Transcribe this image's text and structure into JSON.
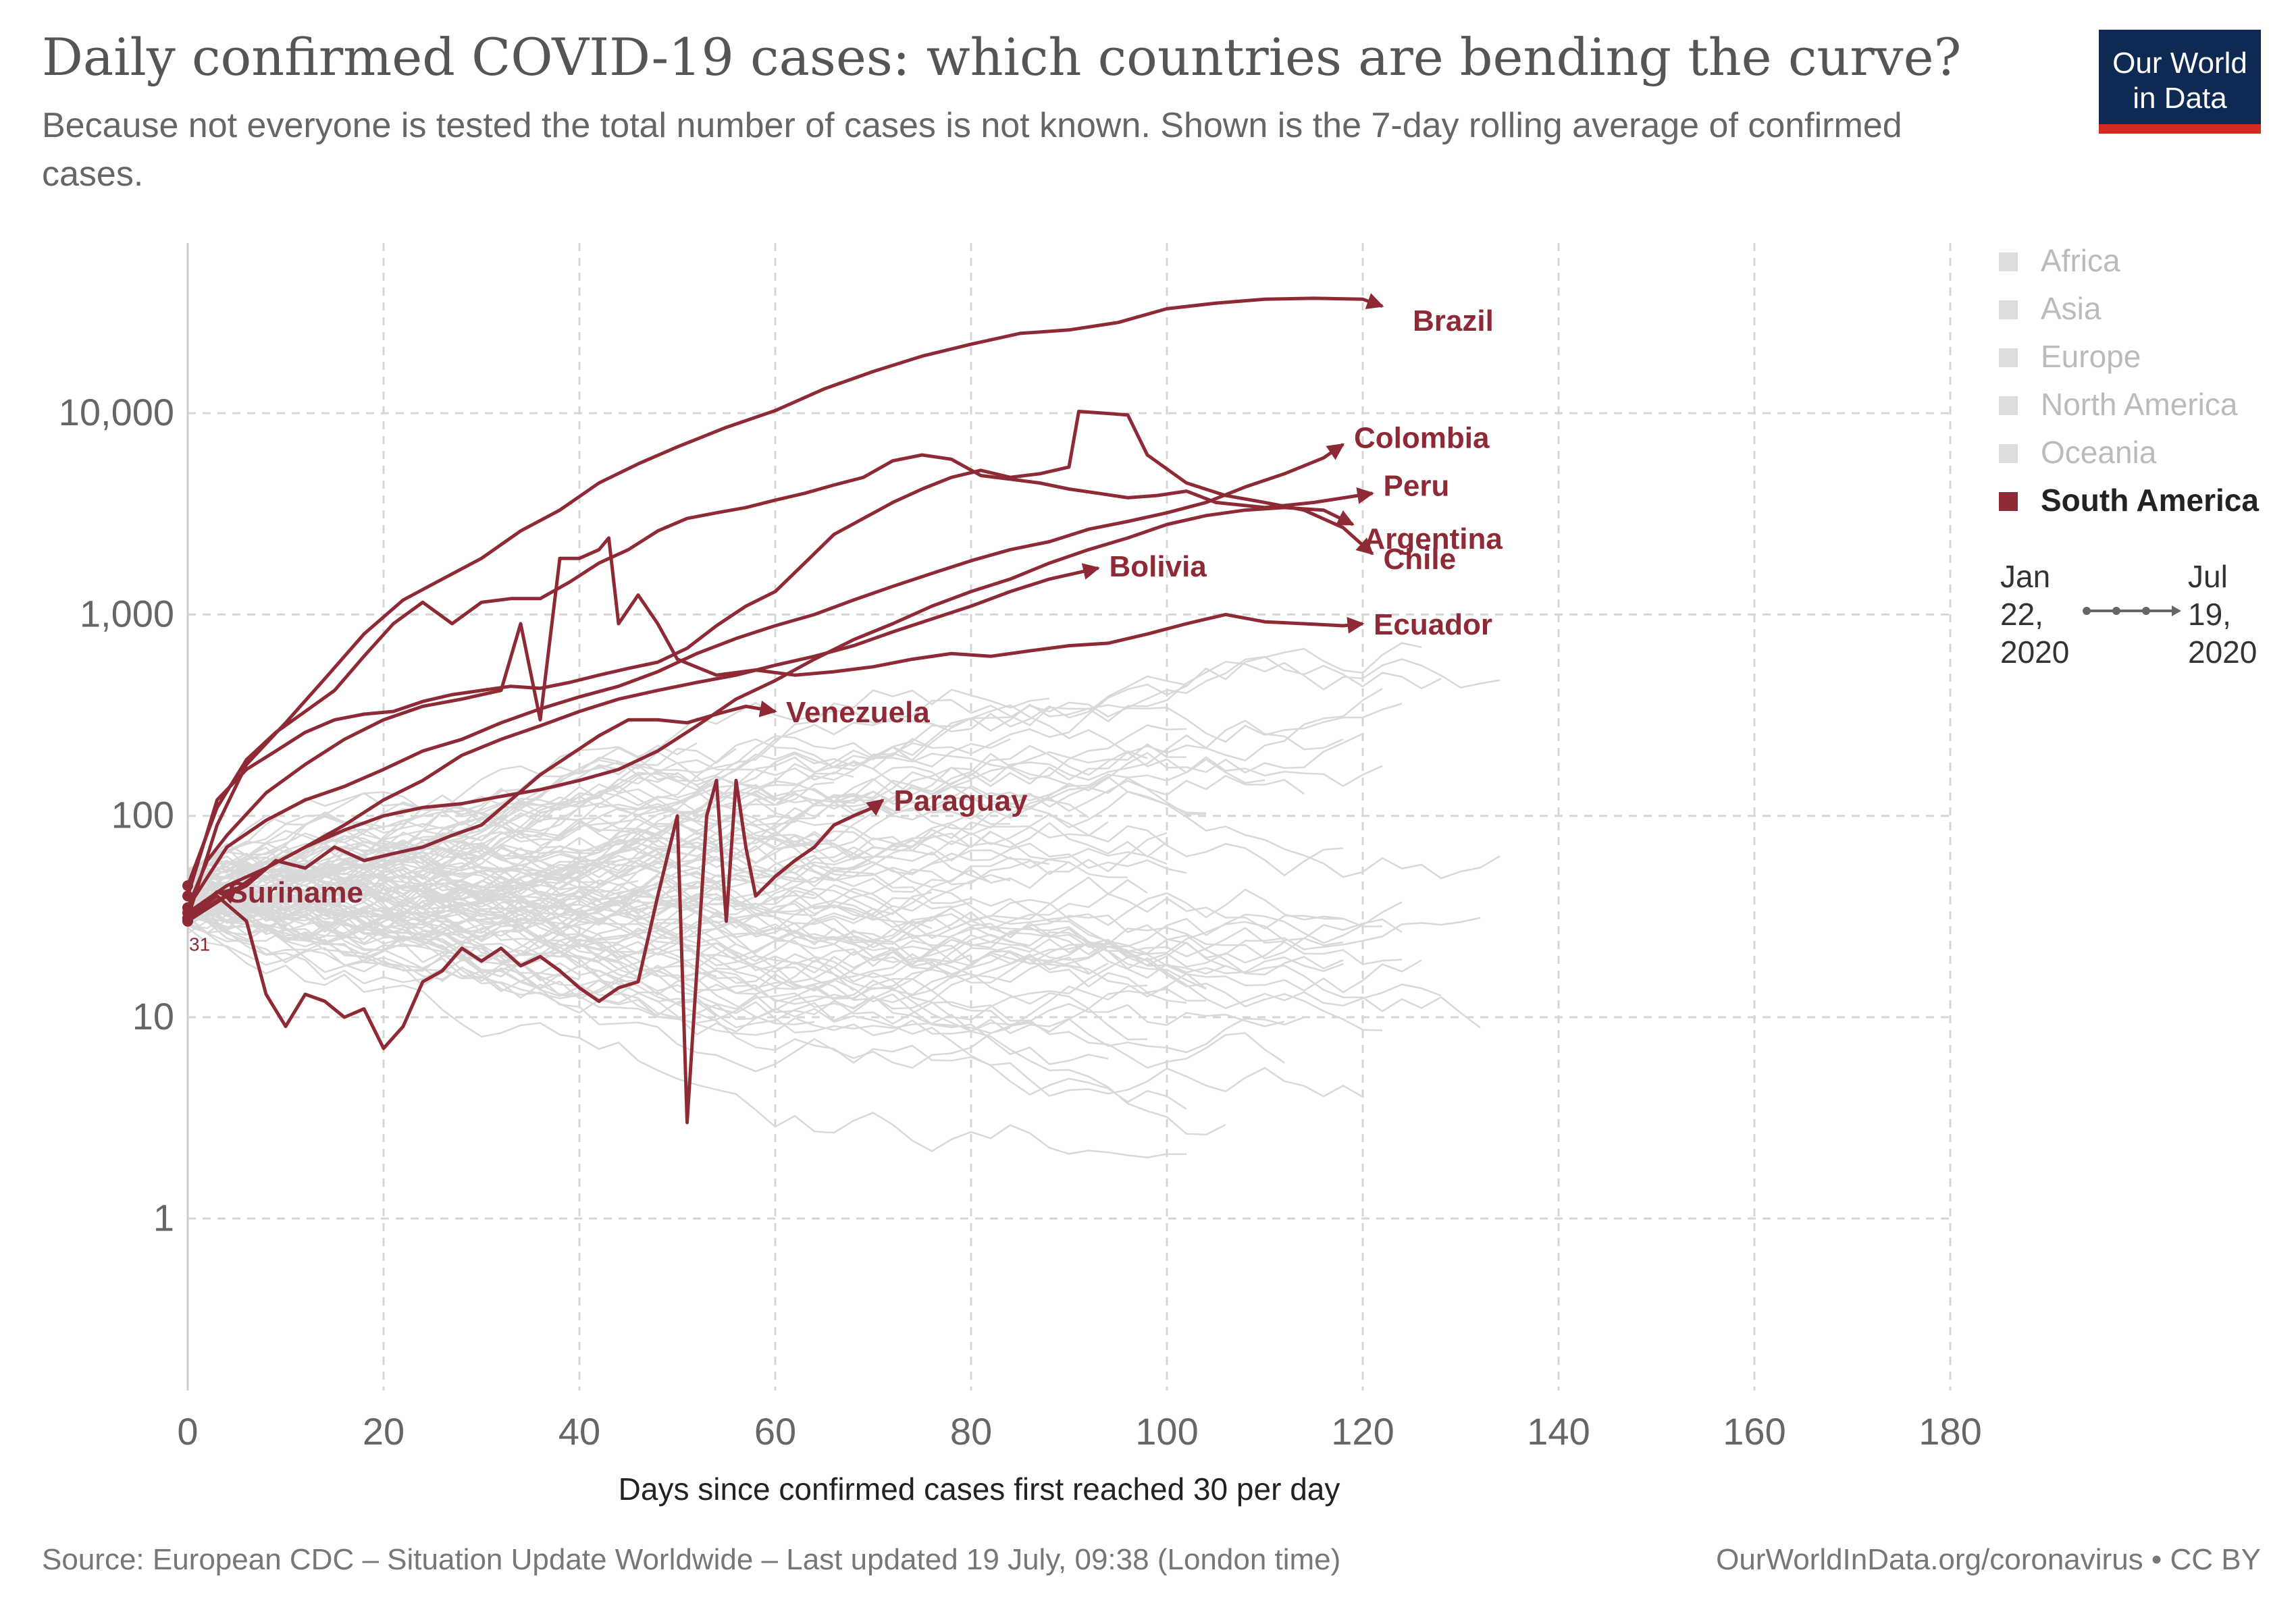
{
  "header": {
    "title": "Daily confirmed COVID-19 cases: which countries are bending the curve?",
    "subtitle": "Because not everyone is tested the total number of cases is not known. Shown is the 7-day rolling average of confirmed cases.",
    "logo_line1": "Our World",
    "logo_line2": "in Data"
  },
  "footer": {
    "source": "Source: European CDC – Situation Update Worldwide – Last updated 19 July, 09:38 (London time)",
    "credit": "OurWorldInData.org/coronavirus • CC BY"
  },
  "legend": {
    "items": [
      {
        "label": "Africa",
        "active": false
      },
      {
        "label": "Asia",
        "active": false
      },
      {
        "label": "Europe",
        "active": false
      },
      {
        "label": "North America",
        "active": false
      },
      {
        "label": "Oceania",
        "active": false
      },
      {
        "label": "South America",
        "active": true
      }
    ]
  },
  "timeline": {
    "start": [
      "Jan",
      "22,",
      "2020"
    ],
    "end": [
      "Jul",
      "19,",
      "2020"
    ]
  },
  "colors": {
    "highlight": "#8e2a35",
    "background_series": "#d9d9d9",
    "grid": "#d6d6d6",
    "logo_bg": "#0e2a52",
    "logo_accent": "#d42b21"
  },
  "chart_data": {
    "type": "line",
    "y_scale": "log",
    "xlabel": "Days since confirmed cases first reached 30 per day",
    "ylabel": "",
    "xlim": [
      0,
      180
    ],
    "ylim": [
      0.14,
      70000
    ],
    "x_ticks": [
      {
        "value": 0,
        "label": "0"
      },
      {
        "value": 20,
        "label": "20"
      },
      {
        "value": 40,
        "label": "40"
      },
      {
        "value": 60,
        "label": "60"
      },
      {
        "value": 80,
        "label": "80"
      },
      {
        "value": 100,
        "label": "100"
      },
      {
        "value": 120,
        "label": "120"
      },
      {
        "value": 140,
        "label": "140"
      },
      {
        "value": 160,
        "label": "160"
      },
      {
        "value": 180,
        "label": "180"
      }
    ],
    "y_ticks": [
      {
        "value": 1,
        "label": "1"
      },
      {
        "value": 10,
        "label": "10"
      },
      {
        "value": 100,
        "label": "100"
      },
      {
        "value": 1000,
        "label": "1,000"
      },
      {
        "value": 10000,
        "label": "10,000"
      }
    ],
    "start_annotation": "31",
    "grid": true,
    "series": [
      {
        "name": "Brazil",
        "label_x": 124,
        "label_y": 29000,
        "x": [
          0,
          3,
          6,
          10,
          14,
          18,
          22,
          26,
          30,
          34,
          38,
          42,
          46,
          50,
          55,
          60,
          65,
          70,
          75,
          80,
          85,
          90,
          95,
          100,
          105,
          110,
          115,
          120,
          122
        ],
        "y": [
          31,
          90,
          180,
          290,
          480,
          800,
          1180,
          1500,
          1900,
          2600,
          3300,
          4500,
          5600,
          6800,
          8500,
          10300,
          13200,
          16100,
          19200,
          22000,
          24900,
          25900,
          28200,
          33000,
          35200,
          36800,
          37200,
          36800,
          34000
        ]
      },
      {
        "name": "Colombia",
        "label_x": 118,
        "label_y": 7600,
        "x": [
          0,
          4,
          8,
          12,
          16,
          20,
          24,
          28,
          32,
          36,
          40,
          44,
          48,
          52,
          56,
          60,
          64,
          68,
          72,
          76,
          80,
          84,
          88,
          92,
          96,
          100,
          104,
          108,
          112,
          116,
          118
        ],
        "y": [
          35,
          70,
          95,
          120,
          140,
          170,
          210,
          240,
          290,
          340,
          390,
          440,
          520,
          640,
          760,
          880,
          1000,
          1180,
          1380,
          1600,
          1850,
          2100,
          2300,
          2650,
          2900,
          3200,
          3600,
          4300,
          5000,
          6000,
          7000
        ]
      },
      {
        "name": "Peru",
        "label_x": 121,
        "label_y": 4400,
        "x": [
          0,
          3,
          6,
          9,
          12,
          15,
          18,
          21,
          24,
          27,
          30,
          33,
          36,
          39,
          42,
          45,
          48,
          51,
          54,
          57,
          60,
          63,
          66,
          69,
          72,
          75,
          78,
          81,
          84,
          87,
          90,
          93,
          96,
          99,
          102,
          105,
          110,
          115,
          121
        ],
        "y": [
          45,
          110,
          190,
          260,
          330,
          420,
          620,
          900,
          1150,
          900,
          1150,
          1200,
          1200,
          1450,
          1800,
          2100,
          2600,
          3000,
          3200,
          3400,
          3700,
          4000,
          4400,
          4800,
          5800,
          6200,
          5900,
          4900,
          4700,
          4500,
          4200,
          4000,
          3800,
          3900,
          4100,
          3600,
          3400,
          3600,
          4000
        ]
      },
      {
        "name": "Argentina",
        "label_x": 119,
        "label_y": 2400,
        "x": [
          0,
          4,
          8,
          12,
          16,
          20,
          24,
          28,
          32,
          36,
          40,
          44,
          48,
          52,
          56,
          60,
          64,
          68,
          72,
          76,
          80,
          84,
          88,
          92,
          96,
          100,
          104,
          108,
          112,
          116,
          119
        ],
        "y": [
          33,
          45,
          55,
          70,
          85,
          100,
          110,
          115,
          125,
          135,
          150,
          170,
          210,
          280,
          380,
          470,
          600,
          750,
          900,
          1100,
          1300,
          1500,
          1800,
          2100,
          2400,
          2800,
          3100,
          3300,
          3400,
          3300,
          2800
        ]
      },
      {
        "name": "Chile",
        "label_x": 121,
        "label_y": 1900,
        "x": [
          0,
          3,
          6,
          9,
          12,
          15,
          18,
          21,
          24,
          27,
          30,
          33,
          36,
          39,
          42,
          45,
          48,
          51,
          54,
          57,
          60,
          63,
          66,
          69,
          72,
          75,
          78,
          81,
          84,
          87,
          90,
          91,
          96,
          98,
          102,
          106,
          110,
          114,
          118,
          121
        ],
        "y": [
          40,
          120,
          170,
          210,
          260,
          300,
          320,
          330,
          370,
          400,
          420,
          440,
          430,
          460,
          500,
          540,
          580,
          680,
          880,
          1100,
          1300,
          1800,
          2500,
          3000,
          3600,
          4200,
          4800,
          5200,
          4800,
          5000,
          5400,
          10200,
          9800,
          6200,
          4500,
          3900,
          3600,
          3300,
          2700,
          2000
        ]
      },
      {
        "name": "Bolivia",
        "label_x": 93,
        "label_y": 1750,
        "x": [
          0,
          4,
          8,
          12,
          16,
          20,
          24,
          28,
          32,
          36,
          40,
          44,
          48,
          52,
          56,
          60,
          64,
          68,
          72,
          76,
          80,
          84,
          88,
          93
        ],
        "y": [
          30,
          40,
          55,
          70,
          90,
          120,
          150,
          200,
          240,
          280,
          330,
          380,
          420,
          460,
          500,
          560,
          620,
          700,
          820,
          950,
          1100,
          1300,
          1500,
          1700
        ]
      },
      {
        "name": "Ecuador",
        "label_x": 120,
        "label_y": 900,
        "x": [
          0,
          2,
          4,
          8,
          12,
          16,
          20,
          24,
          28,
          32,
          34,
          36,
          38,
          40,
          42,
          43,
          44,
          46,
          48,
          50,
          54,
          58,
          62,
          66,
          70,
          74,
          78,
          82,
          86,
          90,
          94,
          98,
          102,
          106,
          110,
          114,
          118,
          120
        ],
        "y": [
          35,
          60,
          80,
          130,
          180,
          240,
          300,
          350,
          380,
          420,
          900,
          300,
          1900,
          1900,
          2100,
          2400,
          900,
          1250,
          900,
          600,
          500,
          530,
          500,
          520,
          550,
          600,
          640,
          620,
          660,
          700,
          720,
          800,
          900,
          1000,
          920,
          900,
          880,
          900
        ]
      },
      {
        "name": "Venezuela",
        "label_x": 60,
        "label_y": 330,
        "x": [
          0,
          3,
          6,
          9,
          12,
          15,
          18,
          21,
          24,
          27,
          30,
          33,
          36,
          39,
          42,
          45,
          48,
          51,
          54,
          57,
          60
        ],
        "y": [
          30,
          38,
          45,
          60,
          55,
          70,
          60,
          65,
          70,
          80,
          90,
          120,
          160,
          200,
          250,
          300,
          300,
          290,
          320,
          350,
          330
        ]
      },
      {
        "name": "Paraguay",
        "label_x": 71,
        "label_y": 120,
        "x": [
          0,
          3,
          6,
          8,
          10,
          12,
          14,
          16,
          18,
          20,
          22,
          24,
          26,
          28,
          30,
          32,
          34,
          36,
          38,
          40,
          42,
          44,
          46,
          48,
          50,
          51,
          53,
          54,
          55,
          56,
          57,
          58,
          60,
          62,
          64,
          66,
          68,
          70,
          71
        ],
        "y": [
          31,
          40,
          30,
          13,
          9,
          13,
          12,
          10,
          11,
          7,
          9,
          15,
          17,
          22,
          19,
          22,
          18,
          20,
          17,
          14,
          12,
          14,
          15,
          40,
          100,
          3,
          100,
          150,
          30,
          150,
          70,
          40,
          50,
          60,
          70,
          90,
          100,
          110,
          120
        ]
      },
      {
        "name": "Suriname",
        "label_x": 3,
        "label_y": 42,
        "x": [
          0,
          1,
          2,
          3,
          4,
          5
        ],
        "y": [
          31,
          35,
          38,
          42,
          40,
          44
        ]
      }
    ]
  }
}
